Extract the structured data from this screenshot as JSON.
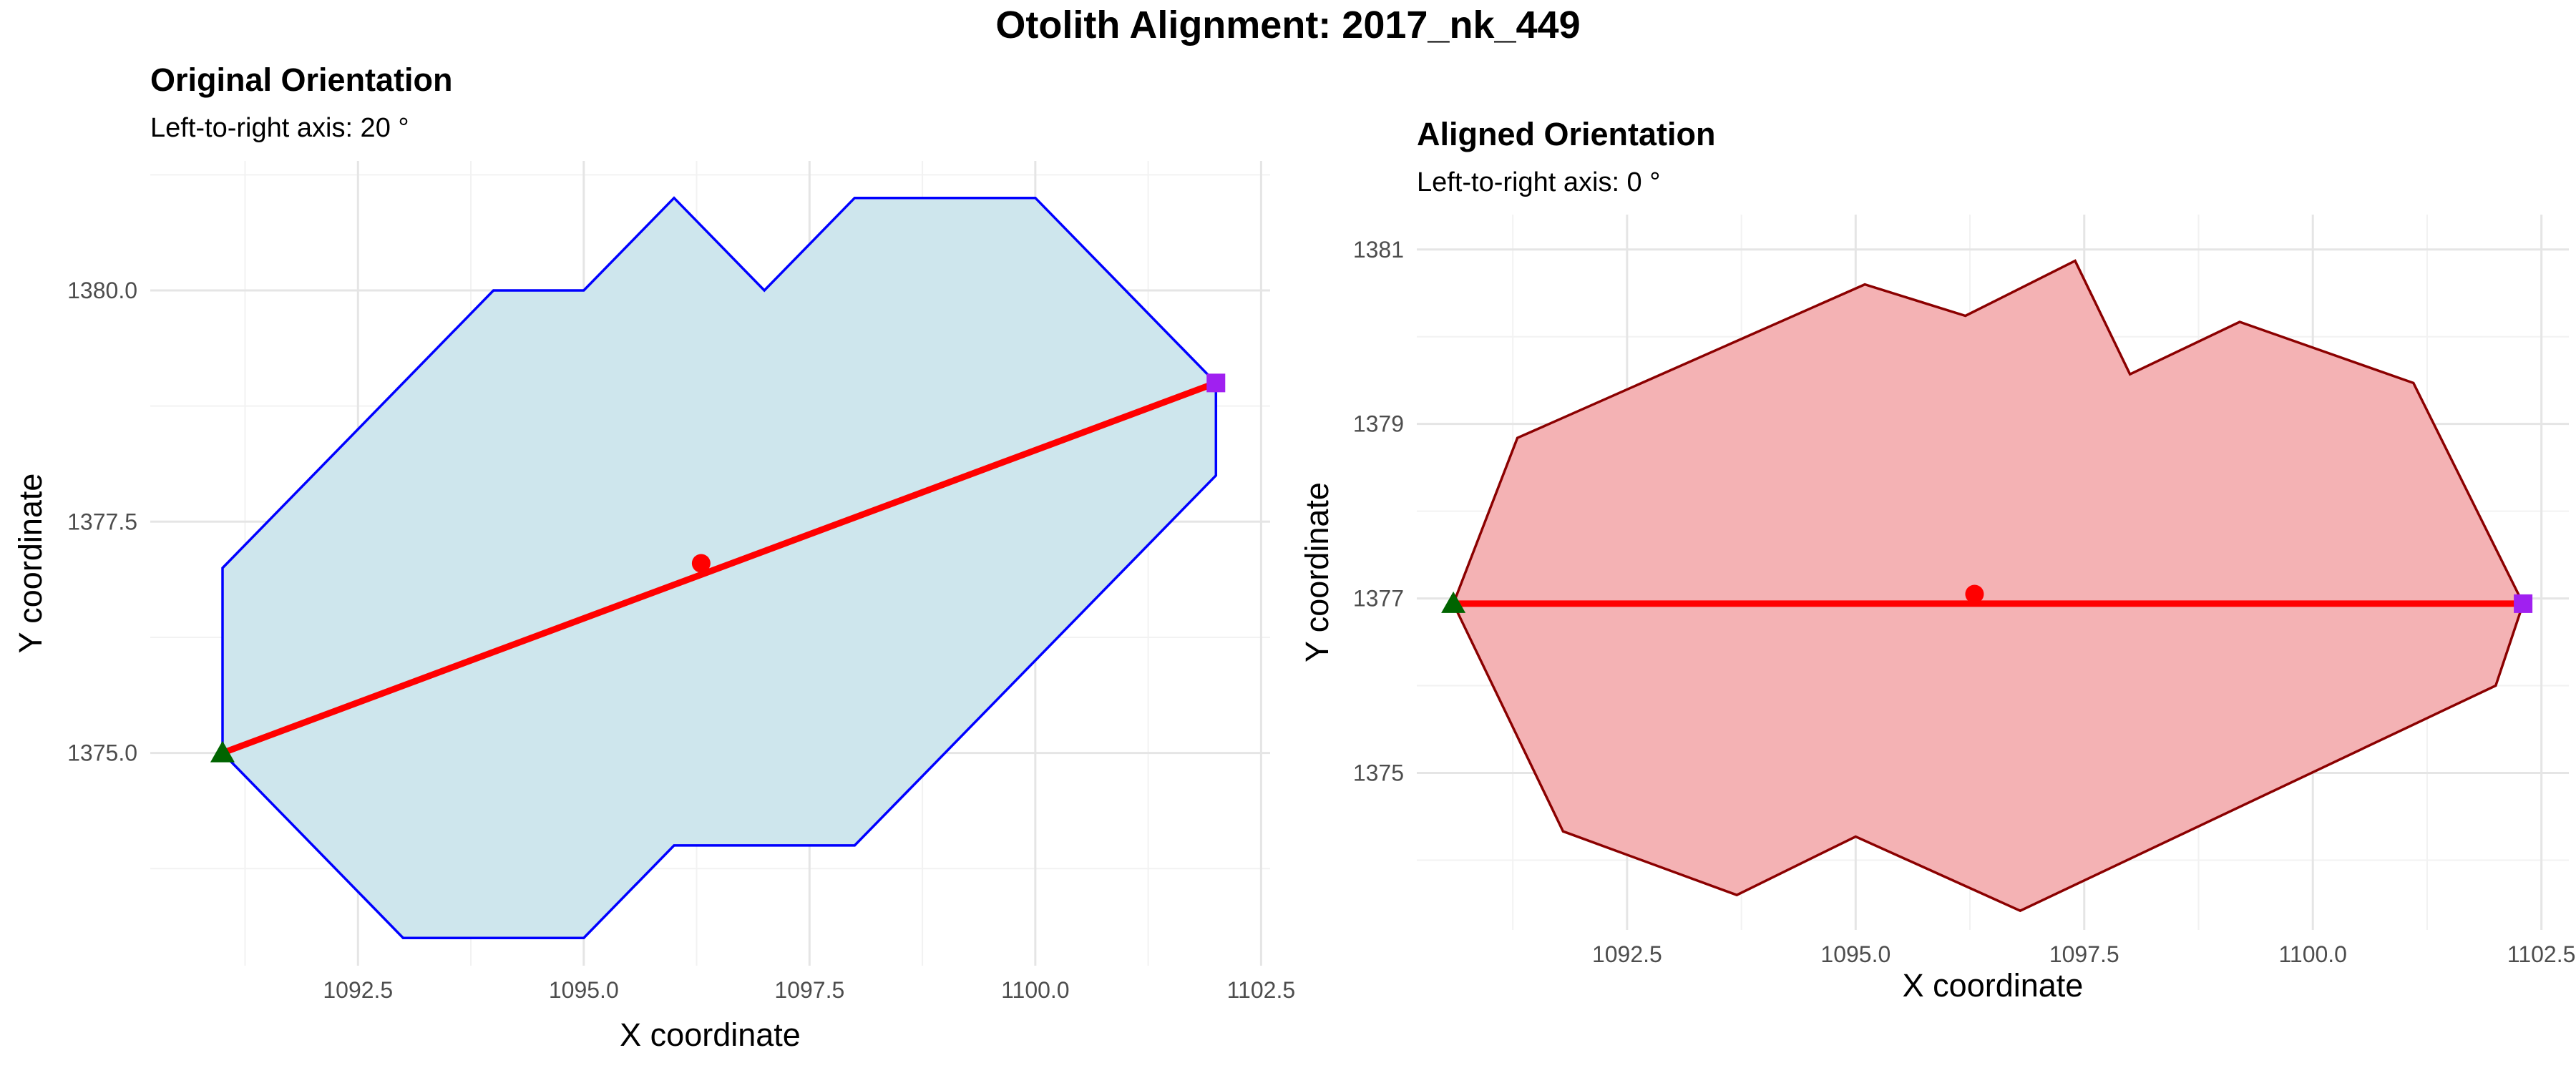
{
  "title": "Otolith Alignment: 2017_nk_449",
  "chart_data": [
    {
      "type": "scatter",
      "title": "Original Orientation",
      "subtitle": "Left-to-right axis: 20 °",
      "xlabel": "X coordinate",
      "ylabel": "Y coordinate",
      "xlim": [
        1090.2,
        1102.6
      ],
      "ylim": [
        1372.7,
        1381.4
      ],
      "x_ticks": [
        1092.5,
        1095.0,
        1097.5,
        1100.0,
        1102.5
      ],
      "x_tick_labels": [
        "1092.5",
        "1095.0",
        "1097.5",
        "1100.0",
        "1102.5"
      ],
      "y_ticks": [
        1375.0,
        1377.5,
        1380.0
      ],
      "y_tick_labels": [
        "1375.0",
        "1377.5",
        "1380.0"
      ],
      "grid": true,
      "outline": {
        "fill": "#cee6ed",
        "stroke": "#0000ff",
        "x": [
          1091,
          1091,
          1094,
          1095,
          1096,
          1097,
          1098,
          1100,
          1102,
          1102,
          1098,
          1096,
          1095,
          1093,
          1091
        ],
        "y": [
          1375,
          1377,
          1380,
          1380,
          1381,
          1380,
          1381,
          1381,
          1379,
          1378,
          1374,
          1374,
          1373,
          1373,
          1375
        ]
      },
      "axis_line": {
        "x": [
          1091,
          1102
        ],
        "y": [
          1375,
          1379
        ],
        "color": "#ff0000"
      },
      "centroid": {
        "x": 1096.3,
        "y": 1377.05,
        "color": "#ff0000"
      },
      "start_point": {
        "x": 1091,
        "y": 1375,
        "color": "#006400",
        "shape": "triangle"
      },
      "end_point": {
        "x": 1102,
        "y": 1379,
        "color": "#a020f0",
        "shape": "square"
      }
    },
    {
      "type": "scatter",
      "title": "Aligned Orientation",
      "subtitle": "Left-to-right axis: 0 °",
      "xlabel": "X coordinate",
      "ylabel": "Y coordinate",
      "xlim": [
        1090.2,
        1102.8
      ],
      "ylim": [
        1373.2,
        1381.4
      ],
      "x_ticks": [
        1092.5,
        1095.0,
        1097.5,
        1100.0,
        1102.5
      ],
      "x_tick_labels": [
        "1092.5",
        "1095.0",
        "1097.5",
        "1100.0",
        "1102.5"
      ],
      "y_ticks": [
        1375,
        1377,
        1379,
        1381
      ],
      "y_tick_labels": [
        "1375",
        "1377",
        "1379",
        "1381"
      ],
      "grid": true,
      "outline": {
        "fill": "#f4b2b4",
        "stroke": "#8b0000",
        "x": [
          1090.6,
          1091.3,
          1095.1,
          1096.2,
          1097.4,
          1098.0,
          1099.2,
          1101.1,
          1102.3,
          1102.0,
          1096.8,
          1095.0,
          1093.7,
          1091.8,
          1090.6
        ],
        "y": [
          1376.94,
          1378.84,
          1380.6,
          1380.24,
          1380.87,
          1379.57,
          1380.17,
          1379.47,
          1376.94,
          1376.0,
          1373.42,
          1374.27,
          1373.6,
          1374.33,
          1376.94
        ]
      },
      "axis_line": {
        "x": [
          1090.6,
          1102.3
        ],
        "y": [
          1376.94,
          1376.94
        ],
        "color": "#ff0000"
      },
      "centroid": {
        "x": 1096.3,
        "y": 1377.05,
        "color": "#ff0000"
      },
      "start_point": {
        "x": 1090.6,
        "y": 1376.94,
        "color": "#006400",
        "shape": "triangle"
      },
      "end_point": {
        "x": 1102.3,
        "y": 1376.94,
        "color": "#a020f0",
        "shape": "square"
      }
    }
  ]
}
